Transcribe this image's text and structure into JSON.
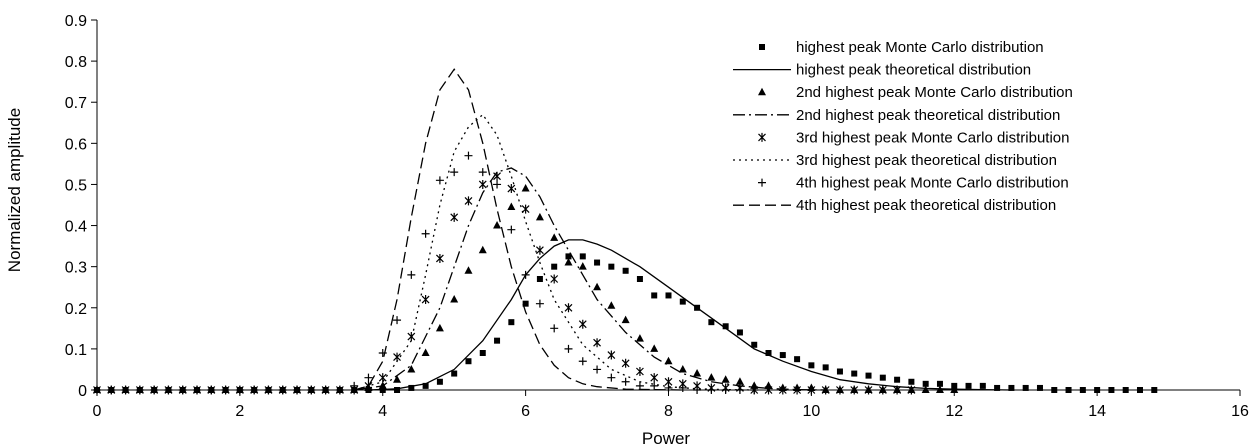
{
  "chart_data": {
    "type": "scatter",
    "title": "",
    "xlabel": "Power",
    "ylabel": "Normalized amplitude",
    "xlim": [
      0,
      16
    ],
    "ylim": [
      0,
      0.9
    ],
    "xticks": [
      "0",
      "2",
      "4",
      "6",
      "8",
      "10",
      "12",
      "14",
      "16"
    ],
    "yticks": [
      "0",
      "0.1",
      "0.2",
      "0.3",
      "0.4",
      "0.5",
      "0.6",
      "0.7",
      "0.8",
      "0.9"
    ],
    "grid": false,
    "legend_position": "top-right",
    "series": [
      {
        "name": "highest peak Monte Carlo distribution",
        "kind": "markers",
        "marker": "square",
        "x": [
          0,
          0.2,
          0.4,
          0.6,
          0.8,
          1.0,
          1.2,
          1.4,
          1.6,
          1.8,
          2.0,
          2.2,
          2.4,
          2.6,
          2.8,
          3.0,
          3.2,
          3.4,
          3.6,
          3.8,
          4.0,
          4.2,
          4.4,
          4.6,
          4.8,
          5.0,
          5.2,
          5.4,
          5.6,
          5.8,
          6.0,
          6.2,
          6.4,
          6.6,
          6.8,
          7.0,
          7.2,
          7.4,
          7.6,
          7.8,
          8.0,
          8.2,
          8.4,
          8.6,
          8.8,
          9.0,
          9.2,
          9.4,
          9.6,
          9.8,
          10.0,
          10.2,
          10.4,
          10.6,
          10.8,
          11.0,
          11.2,
          11.4,
          11.6,
          11.8,
          12.0,
          12.2,
          12.4,
          12.6,
          12.8,
          13.0,
          13.2,
          13.4,
          13.6,
          13.8,
          14.0,
          14.2,
          14.4,
          14.6,
          14.8
        ],
        "y": [
          0,
          0,
          0,
          0,
          0,
          0,
          0,
          0,
          0,
          0,
          0,
          0,
          0,
          0,
          0,
          0,
          0,
          0,
          0,
          0,
          0,
          0,
          0.005,
          0.01,
          0.02,
          0.04,
          0.07,
          0.09,
          0.12,
          0.165,
          0.21,
          0.27,
          0.3,
          0.325,
          0.325,
          0.31,
          0.3,
          0.29,
          0.27,
          0.23,
          0.23,
          0.215,
          0.2,
          0.165,
          0.155,
          0.14,
          0.11,
          0.09,
          0.085,
          0.075,
          0.06,
          0.055,
          0.045,
          0.04,
          0.035,
          0.03,
          0.025,
          0.02,
          0.015,
          0.015,
          0.01,
          0.01,
          0.01,
          0.005,
          0.005,
          0.005,
          0.005,
          0,
          0,
          0,
          0,
          0,
          0,
          0,
          0
        ]
      },
      {
        "name": "highest peak theoretical distribution",
        "kind": "line",
        "dash": "solid",
        "x": [
          3.8,
          4.2,
          4.6,
          5.0,
          5.4,
          5.8,
          6.0,
          6.2,
          6.4,
          6.6,
          6.8,
          7.0,
          7.2,
          7.6,
          8.0,
          8.4,
          8.8,
          9.2,
          9.6,
          10.0,
          10.4,
          10.8,
          11.2,
          11.6,
          12.0,
          12.4,
          12.8
        ],
        "y": [
          0,
          0.003,
          0.015,
          0.05,
          0.12,
          0.22,
          0.28,
          0.32,
          0.35,
          0.365,
          0.365,
          0.355,
          0.34,
          0.3,
          0.25,
          0.2,
          0.15,
          0.1,
          0.07,
          0.045,
          0.025,
          0.015,
          0.008,
          0.004,
          0.002,
          0.001,
          0
        ]
      },
      {
        "name": "2nd highest peak Monte Carlo distribution",
        "kind": "markers",
        "marker": "triangle",
        "x": [
          0,
          0.2,
          0.4,
          0.6,
          0.8,
          1.0,
          1.2,
          1.4,
          1.6,
          1.8,
          2.0,
          2.2,
          2.4,
          2.6,
          2.8,
          3.0,
          3.2,
          3.4,
          3.6,
          3.8,
          4.0,
          4.2,
          4.4,
          4.6,
          4.8,
          5.0,
          5.2,
          5.4,
          5.6,
          5.8,
          6.0,
          6.2,
          6.4,
          6.6,
          6.8,
          7.0,
          7.2,
          7.4,
          7.6,
          7.8,
          8.0,
          8.2,
          8.4,
          8.6,
          8.8,
          9.0,
          9.2,
          9.4,
          9.6,
          9.8,
          10.0,
          10.2,
          10.4,
          10.6,
          10.8,
          11.0,
          11.2,
          11.4,
          11.6,
          11.8,
          12.0
        ],
        "y": [
          0,
          0,
          0,
          0,
          0,
          0,
          0,
          0,
          0,
          0,
          0,
          0,
          0,
          0,
          0,
          0,
          0,
          0,
          0,
          0.005,
          0.01,
          0.025,
          0.05,
          0.09,
          0.15,
          0.22,
          0.29,
          0.34,
          0.4,
          0.445,
          0.49,
          0.42,
          0.37,
          0.31,
          0.3,
          0.25,
          0.205,
          0.17,
          0.125,
          0.1,
          0.07,
          0.05,
          0.04,
          0.03,
          0.025,
          0.02,
          0.01,
          0.01,
          0.005,
          0.005,
          0.005,
          0,
          0,
          0,
          0,
          0,
          0,
          0,
          0,
          0,
          0
        ]
      },
      {
        "name": "2nd highest peak theoretical distribution",
        "kind": "line",
        "dash": "dash-dot",
        "x": [
          3.6,
          4.0,
          4.4,
          4.8,
          5.0,
          5.2,
          5.4,
          5.6,
          5.8,
          6.0,
          6.2,
          6.4,
          6.6,
          6.8,
          7.0,
          7.4,
          7.8,
          8.2,
          8.6,
          9.0,
          9.4,
          9.8,
          10.2
        ],
        "y": [
          0,
          0.01,
          0.06,
          0.2,
          0.3,
          0.4,
          0.48,
          0.53,
          0.54,
          0.52,
          0.47,
          0.4,
          0.34,
          0.28,
          0.22,
          0.14,
          0.08,
          0.04,
          0.02,
          0.01,
          0.004,
          0.001,
          0
        ]
      },
      {
        "name": "3rd highest peak Monte Carlo distribution",
        "kind": "markers",
        "marker": "asterisk",
        "x": [
          0,
          0.2,
          0.4,
          0.6,
          0.8,
          1.0,
          1.2,
          1.4,
          1.6,
          1.8,
          2.0,
          2.2,
          2.4,
          2.6,
          2.8,
          3.0,
          3.2,
          3.4,
          3.6,
          3.8,
          4.0,
          4.2,
          4.4,
          4.6,
          4.8,
          5.0,
          5.2,
          5.4,
          5.6,
          5.8,
          6.0,
          6.2,
          6.4,
          6.6,
          6.8,
          7.0,
          7.2,
          7.4,
          7.6,
          7.8,
          8.0,
          8.2,
          8.4,
          8.6,
          8.8,
          9.0,
          9.2,
          9.4,
          9.6,
          9.8,
          10.0,
          10.2,
          10.4,
          10.6,
          10.8,
          11.0,
          11.2,
          11.4
        ],
        "y": [
          0,
          0,
          0,
          0,
          0,
          0,
          0,
          0,
          0,
          0,
          0,
          0,
          0,
          0,
          0,
          0,
          0,
          0,
          0,
          0.01,
          0.03,
          0.08,
          0.13,
          0.22,
          0.32,
          0.42,
          0.46,
          0.5,
          0.52,
          0.49,
          0.44,
          0.34,
          0.27,
          0.2,
          0.16,
          0.115,
          0.085,
          0.065,
          0.045,
          0.03,
          0.02,
          0.015,
          0.01,
          0.005,
          0.005,
          0.005,
          0,
          0,
          0,
          0,
          0,
          0,
          0,
          0,
          0,
          0,
          0,
          0
        ]
      },
      {
        "name": "3rd highest peak theoretical distribution",
        "kind": "line",
        "dash": "dotted",
        "x": [
          3.6,
          4.0,
          4.4,
          4.6,
          4.8,
          5.0,
          5.2,
          5.4,
          5.6,
          5.8,
          6.0,
          6.2,
          6.4,
          6.8,
          7.2,
          7.6,
          8.0,
          8.4,
          8.8,
          9.2
        ],
        "y": [
          0,
          0.02,
          0.12,
          0.28,
          0.45,
          0.58,
          0.64,
          0.67,
          0.62,
          0.52,
          0.41,
          0.31,
          0.22,
          0.11,
          0.05,
          0.02,
          0.008,
          0.003,
          0.001,
          0
        ]
      },
      {
        "name": "4th highest peak Monte Carlo distribution",
        "kind": "markers",
        "marker": "plus",
        "x": [
          0,
          0.2,
          0.4,
          0.6,
          0.8,
          1.0,
          1.2,
          1.4,
          1.6,
          1.8,
          2.0,
          2.2,
          2.4,
          2.6,
          2.8,
          3.0,
          3.2,
          3.4,
          3.6,
          3.8,
          4.0,
          4.2,
          4.4,
          4.6,
          4.8,
          5.0,
          5.2,
          5.4,
          5.6,
          5.8,
          6.0,
          6.2,
          6.4,
          6.6,
          6.8,
          7.0,
          7.2,
          7.4,
          7.6,
          7.8,
          8.0,
          8.2,
          8.4,
          8.6,
          8.8,
          9.0,
          9.2
        ],
        "y": [
          0,
          0,
          0,
          0,
          0,
          0,
          0,
          0,
          0,
          0,
          0,
          0,
          0,
          0,
          0,
          0,
          0,
          0,
          0.01,
          0.03,
          0.09,
          0.17,
          0.28,
          0.38,
          0.51,
          0.53,
          0.57,
          0.53,
          0.5,
          0.39,
          0.28,
          0.21,
          0.15,
          0.1,
          0.07,
          0.05,
          0.03,
          0.02,
          0.01,
          0.01,
          0.005,
          0.005,
          0,
          0,
          0,
          0,
          0
        ]
      },
      {
        "name": "4th highest peak theoretical distribution",
        "kind": "line",
        "dash": "long-dash",
        "x": [
          3.6,
          3.8,
          4.0,
          4.2,
          4.4,
          4.6,
          4.8,
          5.0,
          5.2,
          5.4,
          5.6,
          5.8,
          6.0,
          6.2,
          6.4,
          6.6,
          6.8,
          7.0,
          7.4,
          7.8,
          8.2
        ],
        "y": [
          0,
          0.01,
          0.07,
          0.22,
          0.42,
          0.6,
          0.73,
          0.78,
          0.73,
          0.6,
          0.44,
          0.3,
          0.19,
          0.11,
          0.06,
          0.03,
          0.015,
          0.008,
          0.002,
          0.001,
          0
        ]
      }
    ]
  }
}
